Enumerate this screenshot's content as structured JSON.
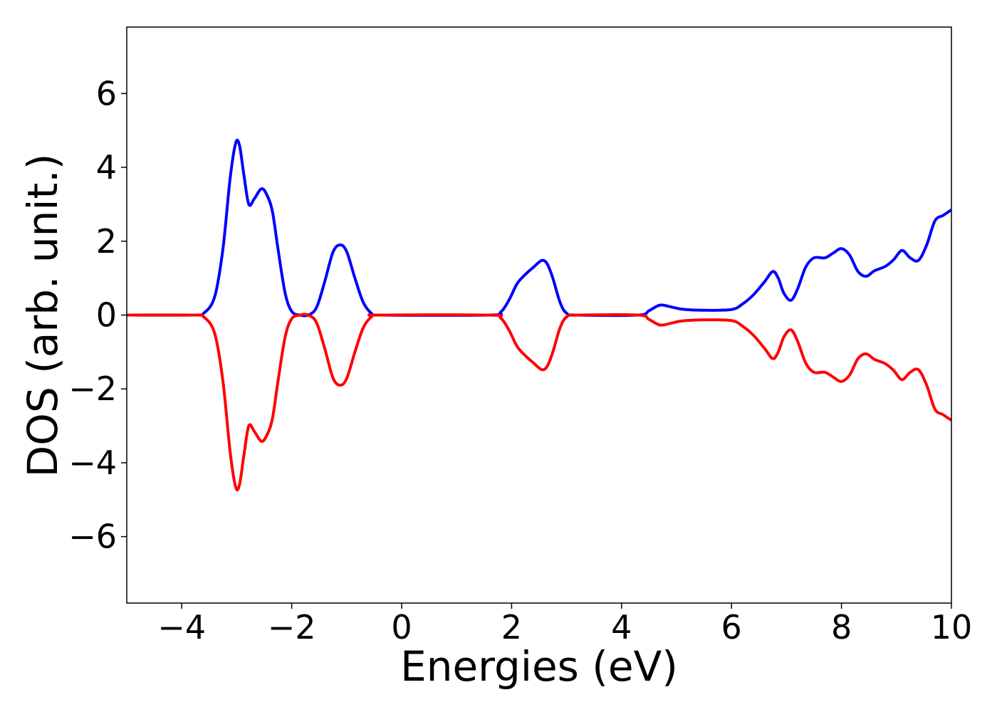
{
  "chart_data": {
    "type": "line",
    "title": "",
    "xlabel": "Energies (eV)",
    "ylabel": "DOS (arb. unit.)",
    "xlim": [
      -5,
      10
    ],
    "ylim": [
      -7.8,
      7.8
    ],
    "xticks": [
      -4,
      -2,
      0,
      2,
      4,
      6,
      8,
      10
    ],
    "xtick_labels": [
      "−4",
      "−2",
      "0",
      "2",
      "4",
      "6",
      "8",
      "10"
    ],
    "yticks": [
      6,
      4,
      2,
      0,
      -2,
      -4,
      -6
    ],
    "ytick_labels": [
      "6",
      "4",
      "2",
      "0",
      "−2",
      "−4",
      "−6"
    ],
    "grid": false,
    "legend": "none",
    "series": [
      {
        "color": "#0000ff",
        "points": [
          [
            -5,
            0
          ],
          [
            -3.8,
            0
          ],
          [
            -3.6,
            0.05
          ],
          [
            -3.4,
            0.5
          ],
          [
            -3.25,
            1.8
          ],
          [
            -3.12,
            3.7
          ],
          [
            -3.02,
            4.65
          ],
          [
            -2.95,
            4.6
          ],
          [
            -2.87,
            3.8
          ],
          [
            -2.78,
            3.0
          ],
          [
            -2.68,
            3.15
          ],
          [
            -2.55,
            3.42
          ],
          [
            -2.45,
            3.25
          ],
          [
            -2.35,
            2.8
          ],
          [
            -2.25,
            1.8
          ],
          [
            -2.12,
            0.6
          ],
          [
            -2.0,
            0.1
          ],
          [
            -1.85,
            0.0
          ],
          [
            -1.7,
            0.0
          ],
          [
            -1.55,
            0.2
          ],
          [
            -1.4,
            0.9
          ],
          [
            -1.25,
            1.7
          ],
          [
            -1.12,
            1.9
          ],
          [
            -1.0,
            1.72
          ],
          [
            -0.85,
            1.0
          ],
          [
            -0.7,
            0.35
          ],
          [
            -0.55,
            0.05
          ],
          [
            -0.4,
            0.0
          ],
          [
            1.6,
            0.0
          ],
          [
            1.8,
            0.08
          ],
          [
            1.95,
            0.4
          ],
          [
            2.1,
            0.85
          ],
          [
            2.25,
            1.1
          ],
          [
            2.4,
            1.3
          ],
          [
            2.55,
            1.48
          ],
          [
            2.65,
            1.38
          ],
          [
            2.75,
            1.0
          ],
          [
            2.88,
            0.35
          ],
          [
            3.0,
            0.05
          ],
          [
            3.2,
            0.0
          ],
          [
            4.3,
            0.0
          ],
          [
            4.5,
            0.12
          ],
          [
            4.7,
            0.27
          ],
          [
            4.9,
            0.22
          ],
          [
            5.1,
            0.16
          ],
          [
            5.5,
            0.13
          ],
          [
            6.0,
            0.15
          ],
          [
            6.2,
            0.3
          ],
          [
            6.4,
            0.55
          ],
          [
            6.6,
            0.9
          ],
          [
            6.75,
            1.18
          ],
          [
            6.85,
            1.0
          ],
          [
            6.95,
            0.6
          ],
          [
            7.08,
            0.4
          ],
          [
            7.2,
            0.7
          ],
          [
            7.35,
            1.3
          ],
          [
            7.5,
            1.55
          ],
          [
            7.7,
            1.55
          ],
          [
            7.85,
            1.68
          ],
          [
            8.0,
            1.8
          ],
          [
            8.15,
            1.62
          ],
          [
            8.3,
            1.18
          ],
          [
            8.45,
            1.05
          ],
          [
            8.6,
            1.2
          ],
          [
            8.8,
            1.32
          ],
          [
            8.95,
            1.5
          ],
          [
            9.1,
            1.75
          ],
          [
            9.25,
            1.55
          ],
          [
            9.4,
            1.48
          ],
          [
            9.55,
            1.9
          ],
          [
            9.7,
            2.55
          ],
          [
            9.85,
            2.7
          ],
          [
            10.0,
            2.85
          ]
        ]
      },
      {
        "color": "#ff0000",
        "points": [
          [
            -5,
            0
          ],
          [
            -3.8,
            0
          ],
          [
            -3.6,
            -0.05
          ],
          [
            -3.4,
            -0.5
          ],
          [
            -3.25,
            -1.8
          ],
          [
            -3.12,
            -3.7
          ],
          [
            -3.02,
            -4.65
          ],
          [
            -2.95,
            -4.6
          ],
          [
            -2.87,
            -3.8
          ],
          [
            -2.78,
            -3.0
          ],
          [
            -2.68,
            -3.15
          ],
          [
            -2.55,
            -3.42
          ],
          [
            -2.45,
            -3.25
          ],
          [
            -2.35,
            -2.8
          ],
          [
            -2.25,
            -1.8
          ],
          [
            -2.12,
            -0.6
          ],
          [
            -2.0,
            -0.1
          ],
          [
            -1.85,
            0.0
          ],
          [
            -1.7,
            0.0
          ],
          [
            -1.55,
            -0.2
          ],
          [
            -1.4,
            -0.9
          ],
          [
            -1.25,
            -1.7
          ],
          [
            -1.12,
            -1.9
          ],
          [
            -1.0,
            -1.72
          ],
          [
            -0.85,
            -1.0
          ],
          [
            -0.7,
            -0.35
          ],
          [
            -0.55,
            -0.05
          ],
          [
            -0.4,
            0.0
          ],
          [
            1.6,
            0.0
          ],
          [
            1.8,
            -0.08
          ],
          [
            1.95,
            -0.4
          ],
          [
            2.1,
            -0.85
          ],
          [
            2.25,
            -1.1
          ],
          [
            2.4,
            -1.3
          ],
          [
            2.55,
            -1.48
          ],
          [
            2.65,
            -1.38
          ],
          [
            2.75,
            -1.0
          ],
          [
            2.88,
            -0.35
          ],
          [
            3.0,
            -0.05
          ],
          [
            3.2,
            0.0
          ],
          [
            4.3,
            0.0
          ],
          [
            4.5,
            -0.12
          ],
          [
            4.7,
            -0.27
          ],
          [
            4.9,
            -0.22
          ],
          [
            5.1,
            -0.16
          ],
          [
            5.5,
            -0.13
          ],
          [
            6.0,
            -0.15
          ],
          [
            6.2,
            -0.3
          ],
          [
            6.4,
            -0.55
          ],
          [
            6.6,
            -0.9
          ],
          [
            6.75,
            -1.18
          ],
          [
            6.85,
            -1.0
          ],
          [
            6.95,
            -0.6
          ],
          [
            7.08,
            -0.4
          ],
          [
            7.2,
            -0.7
          ],
          [
            7.35,
            -1.3
          ],
          [
            7.5,
            -1.55
          ],
          [
            7.7,
            -1.55
          ],
          [
            7.85,
            -1.68
          ],
          [
            8.0,
            -1.8
          ],
          [
            8.15,
            -1.62
          ],
          [
            8.3,
            -1.18
          ],
          [
            8.45,
            -1.05
          ],
          [
            8.6,
            -1.2
          ],
          [
            8.8,
            -1.32
          ],
          [
            8.95,
            -1.5
          ],
          [
            9.1,
            -1.75
          ],
          [
            9.25,
            -1.55
          ],
          [
            9.4,
            -1.48
          ],
          [
            9.55,
            -1.9
          ],
          [
            9.7,
            -2.55
          ],
          [
            9.85,
            -2.7
          ],
          [
            10.0,
            -2.85
          ]
        ]
      }
    ]
  }
}
